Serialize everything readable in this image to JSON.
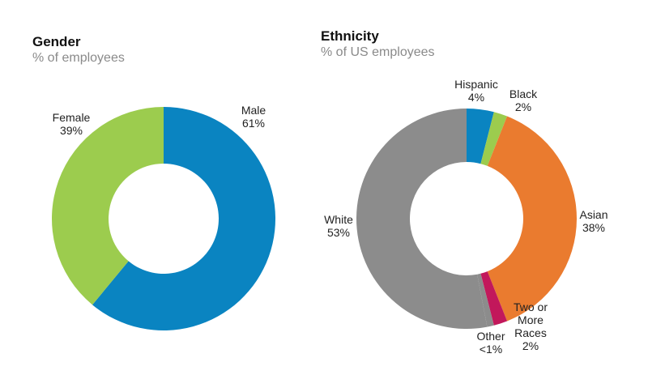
{
  "colors": {
    "blue": "#0a84c1",
    "green": "#9ccc4e",
    "orange": "#ea7b2f",
    "gray": "#8c8c8c",
    "magenta": "#c2185b"
  },
  "chart_data": [
    {
      "type": "pie",
      "title": "Gender",
      "subtitle": "% of employees",
      "donut": true,
      "slices": [
        {
          "name": "Male",
          "value": 61,
          "label_lines": [
            "Male",
            "61%"
          ],
          "color": "#0a84c1"
        },
        {
          "name": "Female",
          "value": 39,
          "label_lines": [
            "Female",
            "39%"
          ],
          "color": "#9ccc4e"
        }
      ]
    },
    {
      "type": "pie",
      "title": "Ethnicity",
      "subtitle": "% of US employees",
      "donut": true,
      "slices": [
        {
          "name": "Hispanic",
          "value": 4,
          "label_lines": [
            "Hispanic",
            "4%"
          ],
          "color": "#0a84c1"
        },
        {
          "name": "Black",
          "value": 2,
          "label_lines": [
            "Black",
            "2%"
          ],
          "color": "#9ccc4e"
        },
        {
          "name": "Asian",
          "value": 38,
          "label_lines": [
            "Asian",
            "38%"
          ],
          "color": "#ea7b2f"
        },
        {
          "name": "Two or More Races",
          "value": 2,
          "label_lines": [
            "Two or",
            "More",
            "Races",
            "2%"
          ],
          "color": "#c2185b"
        },
        {
          "name": "Other",
          "value": 1,
          "label_lines": [
            "Other",
            "<1%"
          ],
          "color": "#8c8c8c"
        },
        {
          "name": "White",
          "value": 53,
          "label_lines": [
            "White",
            "53%"
          ],
          "color": "#8c8c8c"
        }
      ]
    }
  ]
}
